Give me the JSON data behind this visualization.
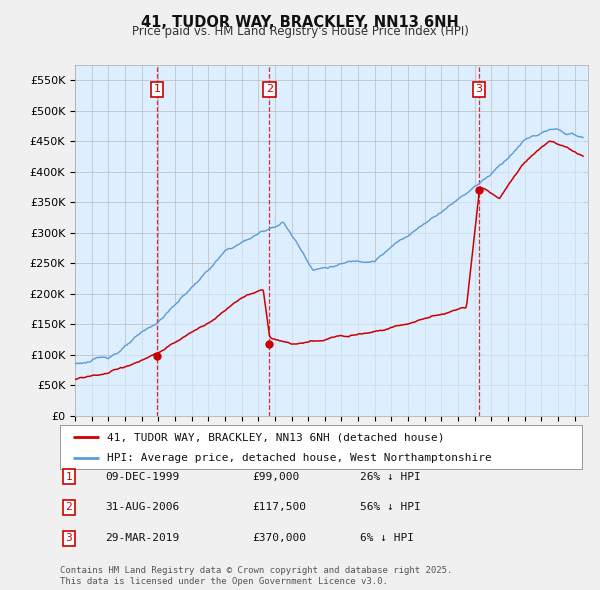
{
  "title": "41, TUDOR WAY, BRACKLEY, NN13 6NH",
  "subtitle": "Price paid vs. HM Land Registry's House Price Index (HPI)",
  "ylim": [
    0,
    575000
  ],
  "yticks": [
    0,
    50000,
    100000,
    150000,
    200000,
    250000,
    300000,
    350000,
    400000,
    450000,
    500000,
    550000
  ],
  "ytick_labels": [
    "£0",
    "£50K",
    "£100K",
    "£150K",
    "£200K",
    "£250K",
    "£300K",
    "£350K",
    "£400K",
    "£450K",
    "£500K",
    "£550K"
  ],
  "xlim_start": 1995.0,
  "xlim_end": 2025.8,
  "hpi_color": "#5b9bd5",
  "hpi_fill_color": "#ddeeff",
  "price_color": "#cc0000",
  "sale1_year": 1999.92,
  "sale1_price": 99000,
  "sale2_year": 2006.66,
  "sale2_price": 117500,
  "sale3_year": 2019.25,
  "sale3_price": 370000,
  "legend_line1": "41, TUDOR WAY, BRACKLEY, NN13 6NH (detached house)",
  "legend_line2": "HPI: Average price, detached house, West Northamptonshire",
  "table_rows": [
    [
      "1",
      "09-DEC-1999",
      "£99,000",
      "26% ↓ HPI"
    ],
    [
      "2",
      "31-AUG-2006",
      "£117,500",
      "56% ↓ HPI"
    ],
    [
      "3",
      "29-MAR-2019",
      "£370,000",
      "6% ↓ HPI"
    ]
  ],
  "footnote": "Contains HM Land Registry data © Crown copyright and database right 2025.\nThis data is licensed under the Open Government Licence v3.0.",
  "bg_color": "#f0f0f0",
  "plot_bg": "#ddeeff"
}
